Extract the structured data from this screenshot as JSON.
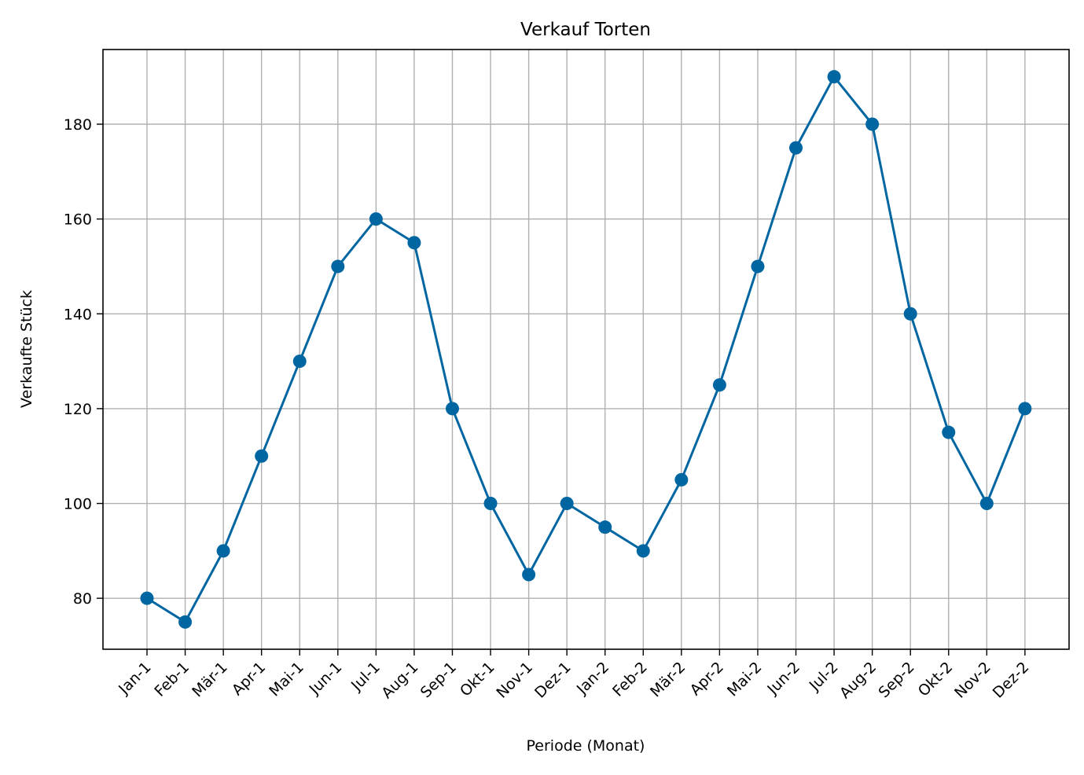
{
  "chart_data": {
    "type": "line",
    "title": "Verkauf Torten",
    "xlabel": "Periode (Monat)",
    "ylabel": "Verkaufte Stück",
    "categories": [
      "Jan-1",
      "Feb-1",
      "Mär-1",
      "Apr-1",
      "Mai-1",
      "Jun-1",
      "Jul-1",
      "Aug-1",
      "Sep-1",
      "Okt-1",
      "Nov-1",
      "Dez-1",
      "Jan-2",
      "Feb-2",
      "Mär-2",
      "Apr-2",
      "Mai-2",
      "Jun-2",
      "Jul-2",
      "Aug-2",
      "Sep-2",
      "Okt-2",
      "Nov-2",
      "Dez-2"
    ],
    "values": [
      80,
      75,
      90,
      110,
      130,
      150,
      160,
      155,
      120,
      100,
      85,
      100,
      95,
      90,
      105,
      125,
      150,
      175,
      190,
      180,
      140,
      115,
      100,
      120
    ],
    "ylim": [
      69.25,
      195.75
    ],
    "yticks": [
      80,
      100,
      120,
      140,
      160,
      180
    ],
    "grid": true,
    "marker": "circle",
    "series_color": "#0066a2",
    "grid_color": "#b0b0b0"
  }
}
